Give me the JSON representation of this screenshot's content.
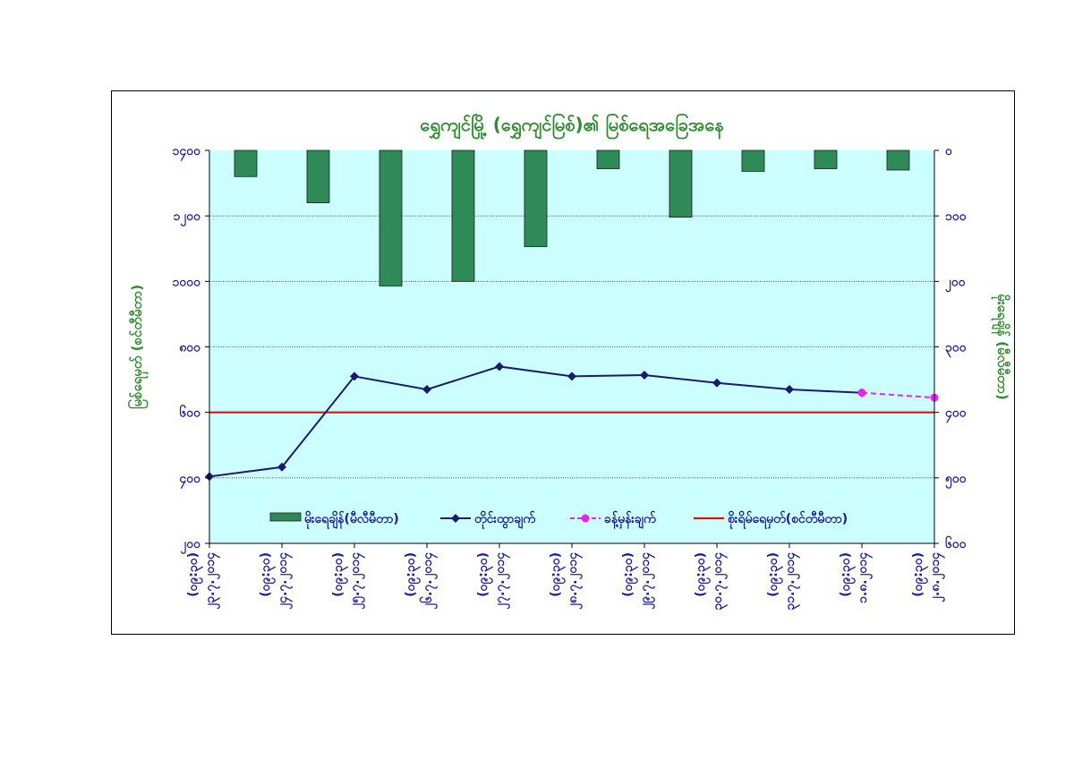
{
  "chart_data": {
    "type": "bar+line",
    "title": "ရွှေကျင်မြို့ (ရွှေကျင်မြစ်)၏ မြစ်ရေအခြေအနေ",
    "ylabel_left": "မြစ်ရေမှတ် (စင်တီမီတာ)",
    "ylabel_right": "မိုးရေချိန် (မီလီမီတာ)",
    "categories": [
      [
        "၂၃.၇.၂၀၁၄",
        "(၀၉:၃၀)"
      ],
      [
        "၂၄.၇.၂၀၁၄",
        "(၀၉:၃၀)"
      ],
      [
        "၂၅.၇.၂၀၁၄",
        "(၀၉:၃၀)"
      ],
      [
        "၂၆.၇.၂၀၁၄",
        "(၀၉:၃၀)"
      ],
      [
        "၂၇.၇.၂၀၁၄",
        "(၀၉:၃၀)"
      ],
      [
        "၂၈.၇.၂၀၁၄",
        "(၀၉:၃၀)"
      ],
      [
        "၂၉.၇.၂၀၁၄",
        "(၀၉:၃၀)"
      ],
      [
        "၃၀.၇.၂၀၁၄",
        "(၀၉:၃၀)"
      ],
      [
        "၃၁.၇.၂၀၁၄",
        "(၀၉:၃၀)"
      ],
      [
        "၁.၈.၂၀၁၄",
        "(၀၉:၃၀)"
      ],
      [
        "၂.၈.၂၀၁၄",
        "(၀၉:၃၀)"
      ]
    ],
    "left_axis": {
      "ylim": [
        200,
        1400
      ],
      "ticks": [
        200,
        400,
        600,
        800,
        1000,
        1200,
        1400
      ],
      "tick_labels": [
        "၂၀၀",
        "၄၀၀",
        "၆၀၀",
        "၈၀၀",
        "၁၀၀၀",
        "၁၂၀၀",
        "၁၄၀၀"
      ]
    },
    "right_axis": {
      "ylim": [
        0,
        600
      ],
      "inverted": true,
      "ticks": [
        0,
        100,
        200,
        300,
        400,
        500,
        600
      ],
      "tick_labels": [
        "၀",
        "၁၀၀",
        "၂၀၀",
        "၃၀၀",
        "၄၀၀",
        "၅၀၀",
        "၆၀၀"
      ]
    },
    "series": [
      {
        "name": "မိုးရေချိန်(မီလီမီတာ)",
        "kind": "bar",
        "axis": "right",
        "color": "#2e8b57",
        "values": [
          40,
          80,
          207,
          200,
          147,
          28,
          102,
          32,
          28,
          30,
          null
        ]
      },
      {
        "name": "တိုင်းထွာချက်",
        "kind": "line",
        "axis": "left",
        "color": "#1a1a6e",
        "values": [
          404,
          433,
          710,
          670,
          740,
          710,
          714,
          690,
          670,
          660,
          null
        ]
      },
      {
        "name": "ခန့်မှန်းချက်",
        "kind": "dashed-line",
        "axis": "left",
        "color": "#ee22ee",
        "values": [
          null,
          null,
          null,
          null,
          null,
          null,
          null,
          null,
          null,
          660,
          645
        ]
      },
      {
        "name": "စိုးရိမ်ရေမှတ်(စင်တီမီတာ)",
        "kind": "hline",
        "axis": "left",
        "color": "#dd1111",
        "value": 600
      }
    ],
    "grid": "horizontal dotted",
    "legend_position": "bottom-inside",
    "plot_background": "#ccffff"
  }
}
